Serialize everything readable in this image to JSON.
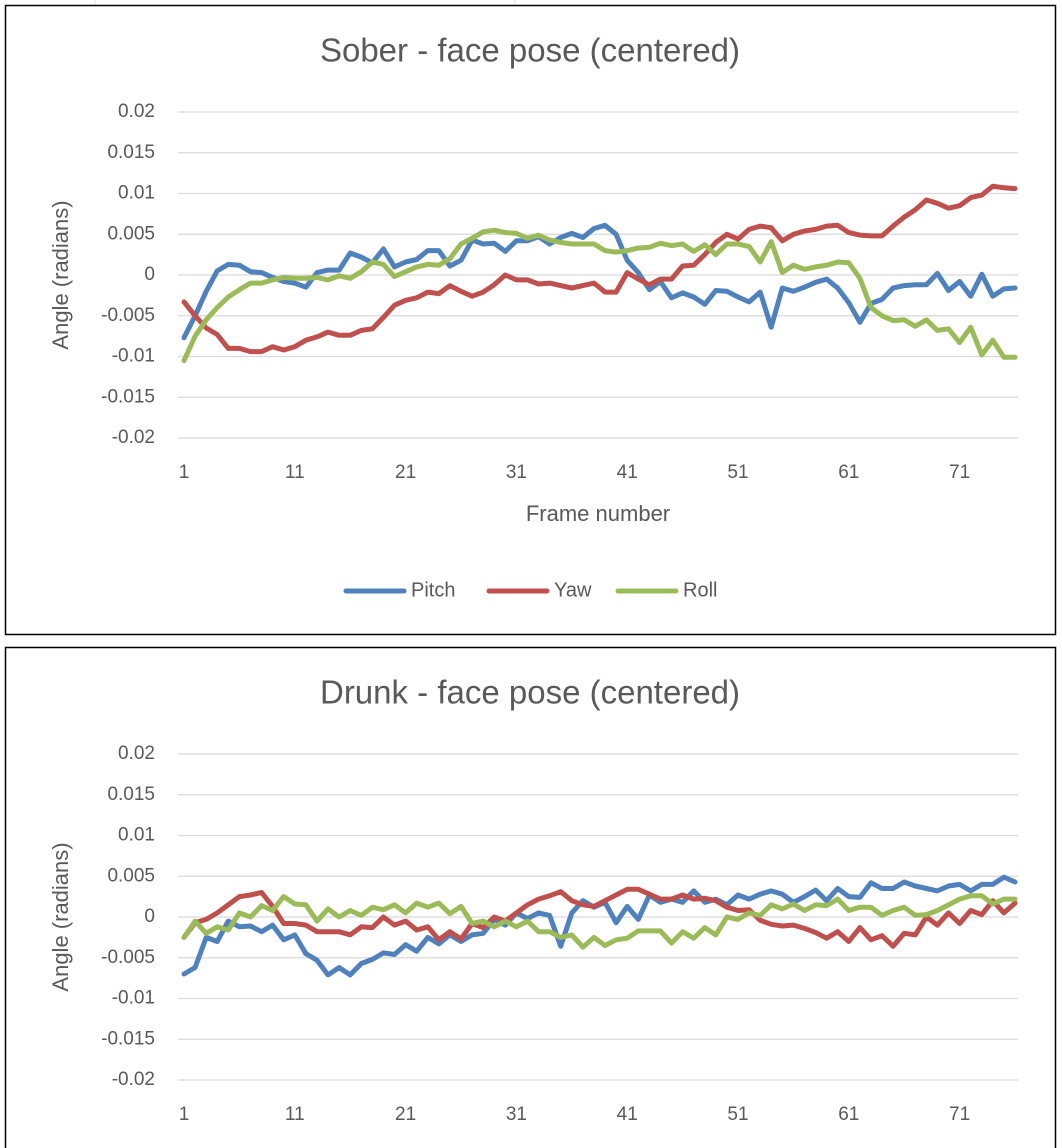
{
  "chart_data": [
    {
      "type": "line",
      "title": "Sober - face pose (centered)",
      "xlabel": "Frame number",
      "ylabel": "Angle (radians)",
      "x": [
        1,
        2,
        3,
        4,
        5,
        6,
        7,
        8,
        9,
        10,
        11,
        12,
        13,
        14,
        15,
        16,
        17,
        18,
        19,
        20,
        21,
        22,
        23,
        24,
        25,
        26,
        27,
        28,
        29,
        30,
        31,
        32,
        33,
        34,
        35,
        36,
        37,
        38,
        39,
        40,
        41,
        42,
        43,
        44,
        45,
        46,
        47,
        48,
        49,
        50,
        51,
        52,
        53,
        54,
        55,
        56,
        57,
        58,
        59,
        60,
        61,
        62,
        63,
        64,
        65,
        66,
        67,
        68,
        69,
        70,
        71,
        72,
        73,
        74,
        75,
        76
      ],
      "xlim": [
        1,
        76
      ],
      "xticks": [
        1,
        11,
        21,
        31,
        41,
        51,
        61,
        71
      ],
      "ylim": [
        -0.02,
        0.02
      ],
      "yticks": [
        -0.02,
        -0.015,
        -0.01,
        -0.005,
        0,
        0.005,
        0.01,
        0.015,
        0.02
      ],
      "grid": true,
      "legend": "bottom",
      "series": [
        {
          "name": "Pitch",
          "color": "#4f81bd",
          "values": [
            -0.0077,
            -0.005,
            -0.002,
            0.0005,
            0.0013,
            0.0012,
            0.0004,
            0.0003,
            -0.0003,
            -0.0008,
            -0.001,
            -0.0015,
            0.0003,
            0.0006,
            0.0006,
            0.0027,
            0.0022,
            0.0015,
            0.0032,
            0.001,
            0.0016,
            0.0019,
            0.003,
            0.003,
            0.0011,
            0.0018,
            0.0043,
            0.0038,
            0.0039,
            0.0029,
            0.0042,
            0.0042,
            0.0047,
            0.0038,
            0.0046,
            0.0051,
            0.0046,
            0.0057,
            0.0061,
            0.005,
            0.0018,
            0.0003,
            -0.0018,
            -0.0008,
            -0.0028,
            -0.0022,
            -0.0027,
            -0.0036,
            -0.0019,
            -0.002,
            -0.0027,
            -0.0033,
            -0.0021,
            -0.0064,
            -0.0016,
            -0.002,
            -0.0015,
            -0.0009,
            -0.0005,
            -0.0016,
            -0.0034,
            -0.0058,
            -0.0035,
            -0.003,
            -0.0016,
            -0.0013,
            -0.0012,
            -0.0012,
            0.0002,
            -0.0019,
            -0.0008,
            -0.0026,
            0.0001,
            -0.0026,
            -0.0017,
            -0.0016
          ]
        },
        {
          "name": "Yaw",
          "color": "#c0504d",
          "values": [
            -0.0033,
            -0.005,
            -0.0065,
            -0.0073,
            -0.009,
            -0.009,
            -0.0094,
            -0.0094,
            -0.0088,
            -0.0092,
            -0.0088,
            -0.008,
            -0.0076,
            -0.007,
            -0.0074,
            -0.0074,
            -0.0068,
            -0.0066,
            -0.0052,
            -0.0037,
            -0.0031,
            -0.0028,
            -0.0021,
            -0.0023,
            -0.0013,
            -0.002,
            -0.0026,
            -0.0021,
            -0.0012,
            0,
            -0.0006,
            -0.0006,
            -0.0011,
            -0.001,
            -0.0013,
            -0.0016,
            -0.0013,
            -0.001,
            -0.0021,
            -0.0021,
            0.0003,
            -0.0005,
            -0.0012,
            -0.0005,
            -0.0005,
            0.0011,
            0.0012,
            0.0025,
            0.004,
            0.005,
            0.0044,
            0.0056,
            0.006,
            0.0058,
            0.0042,
            0.005,
            0.0054,
            0.0056,
            0.006,
            0.0061,
            0.0052,
            0.0049,
            0.0048,
            0.0048,
            0.006,
            0.0071,
            0.008,
            0.0092,
            0.0088,
            0.0082,
            0.0085,
            0.0095,
            0.0098,
            0.0109,
            0.0107,
            0.0106
          ]
        },
        {
          "name": "Roll",
          "color": "#9bbb59",
          "values": [
            -0.0105,
            -0.0075,
            -0.0055,
            -0.004,
            -0.0027,
            -0.0018,
            -0.001,
            -0.001,
            -0.0006,
            -0.0003,
            -0.0004,
            -0.0004,
            -0.0003,
            -0.0006,
            -0.0001,
            -0.0004,
            0.0004,
            0.0016,
            0.0013,
            -0.0002,
            0.0004,
            0.001,
            0.0013,
            0.0012,
            0.002,
            0.0038,
            0.0045,
            0.0053,
            0.0055,
            0.0052,
            0.0051,
            0.0045,
            0.0049,
            0.0043,
            0.004,
            0.0038,
            0.0038,
            0.0038,
            0.003,
            0.0028,
            0.003,
            0.0033,
            0.0034,
            0.0039,
            0.0036,
            0.0038,
            0.0029,
            0.0037,
            0.0025,
            0.0038,
            0.0038,
            0.0035,
            0.0016,
            0.0041,
            0.0003,
            0.0012,
            0.0007,
            0.001,
            0.0012,
            0.0016,
            0.0015,
            -0.0004,
            -0.004,
            -0.005,
            -0.0056,
            -0.0055,
            -0.0063,
            -0.0055,
            -0.0068,
            -0.0066,
            -0.0083,
            -0.0064,
            -0.0098,
            -0.008,
            -0.0101,
            -0.0101
          ]
        }
      ]
    },
    {
      "type": "line",
      "title": "Drunk - face pose (centered)",
      "ylabel": "Angle (radians)",
      "x": [
        1,
        2,
        3,
        4,
        5,
        6,
        7,
        8,
        9,
        10,
        11,
        12,
        13,
        14,
        15,
        16,
        17,
        18,
        19,
        20,
        21,
        22,
        23,
        24,
        25,
        26,
        27,
        28,
        29,
        30,
        31,
        32,
        33,
        34,
        35,
        36,
        37,
        38,
        39,
        40,
        41,
        42,
        43,
        44,
        45,
        46,
        47,
        48,
        49,
        50,
        51,
        52,
        53,
        54,
        55,
        56,
        57,
        58,
        59,
        60,
        61,
        62,
        63,
        64,
        65,
        66,
        67,
        68,
        69,
        70,
        71,
        72,
        73,
        74,
        75,
        76
      ],
      "xlim": [
        1,
        76
      ],
      "xticks": [
        1,
        11,
        21,
        31,
        41,
        51,
        61,
        71
      ],
      "ylim": [
        -0.02,
        0.02
      ],
      "yticks": [
        -0.02,
        -0.015,
        -0.01,
        -0.005,
        0,
        0.005,
        0.01,
        0.015,
        0.02
      ],
      "grid": true,
      "series": [
        {
          "color": "#4f81bd",
          "values": [
            -0.007,
            -0.0062,
            -0.0025,
            -0.003,
            -0.0005,
            -0.0012,
            -0.0011,
            -0.0018,
            -0.001,
            -0.0028,
            -0.0022,
            -0.0045,
            -0.0053,
            -0.0071,
            -0.0062,
            -0.0071,
            -0.0057,
            -0.0052,
            -0.0044,
            -0.0046,
            -0.0034,
            -0.0042,
            -0.0025,
            -0.0033,
            -0.0022,
            -0.003,
            -0.0022,
            -0.002,
            -0.0003,
            -0.001,
            0.0005,
            -0.0002,
            0.0005,
            0.0002,
            -0.0036,
            0.0005,
            0.002,
            0.0012,
            0.0018,
            -0.0007,
            0.0013,
            -0.0003,
            0.0027,
            0.0018,
            0.0022,
            0.0018,
            0.0032,
            0.0018,
            0.0022,
            0.0015,
            0.0027,
            0.0022,
            0.0028,
            0.0032,
            0.0028,
            0.0018,
            0.0025,
            0.0033,
            0.002,
            0.0035,
            0.0025,
            0.0024,
            0.0042,
            0.0035,
            0.0035,
            0.0043,
            0.0038,
            0.0035,
            0.0032,
            0.0038,
            0.004,
            0.0032,
            0.004,
            0.004,
            0.0049,
            0.0043
          ]
        },
        {
          "color": "#c0504d",
          "values": [
            -0.0025,
            -0.0007,
            -0.0003,
            0.0005,
            0.0015,
            0.0025,
            0.0027,
            0.003,
            0.0013,
            -0.0008,
            -0.0008,
            -0.001,
            -0.0018,
            -0.0018,
            -0.0018,
            -0.0022,
            -0.0012,
            -0.0013,
            0,
            -0.001,
            -0.0005,
            -0.0016,
            -0.0012,
            -0.0028,
            -0.0018,
            -0.0027,
            -0.0008,
            -0.0013,
            0,
            -0.0005,
            0.0005,
            0.0015,
            0.0022,
            0.0026,
            0.0031,
            0.002,
            0.0015,
            0.0013,
            0.002,
            0.0027,
            0.0034,
            0.0034,
            0.0028,
            0.0022,
            0.0022,
            0.0027,
            0.0022,
            0.0023,
            0.002,
            0.0012,
            0.0008,
            0.0009,
            -0.0004,
            -0.0009,
            -0.0011,
            -0.001,
            -0.0014,
            -0.0019,
            -0.0026,
            -0.0018,
            -0.003,
            -0.0013,
            -0.0028,
            -0.0023,
            -0.0036,
            -0.002,
            -0.0022,
            0,
            -0.001,
            0.0005,
            -0.0008,
            0.0008,
            0.0003,
            0.002,
            0.0005,
            0.0017
          ]
        },
        {
          "color": "#9bbb59",
          "values": [
            -0.0025,
            -0.0005,
            -0.002,
            -0.0012,
            -0.0016,
            0.0005,
            0,
            0.0014,
            0.0008,
            0.0025,
            0.0016,
            0.0015,
            -0.0005,
            0.001,
            0,
            0.0008,
            0.0002,
            0.0012,
            0.0009,
            0.0015,
            0.0005,
            0.0017,
            0.0012,
            0.0017,
            0.0004,
            0.0013,
            -0.0008,
            -0.0005,
            -0.0012,
            -0.0005,
            -0.0012,
            -0.0005,
            -0.0018,
            -0.0018,
            -0.0025,
            -0.0022,
            -0.0037,
            -0.0025,
            -0.0035,
            -0.0028,
            -0.0026,
            -0.0017,
            -0.0017,
            -0.0017,
            -0.0032,
            -0.0018,
            -0.0026,
            -0.0013,
            -0.0022,
            0,
            -0.0003,
            0.0005,
            0.0002,
            0.0015,
            0.001,
            0.0016,
            0.0008,
            0.0015,
            0.0014,
            0.0022,
            0.0008,
            0.0012,
            0.0012,
            0.0002,
            0.0008,
            0.0012,
            0.0002,
            0.0003,
            0.0008,
            0.0015,
            0.0022,
            0.0026,
            0.0026,
            0.0016,
            0.0022,
            0.0022
          ]
        }
      ]
    }
  ]
}
